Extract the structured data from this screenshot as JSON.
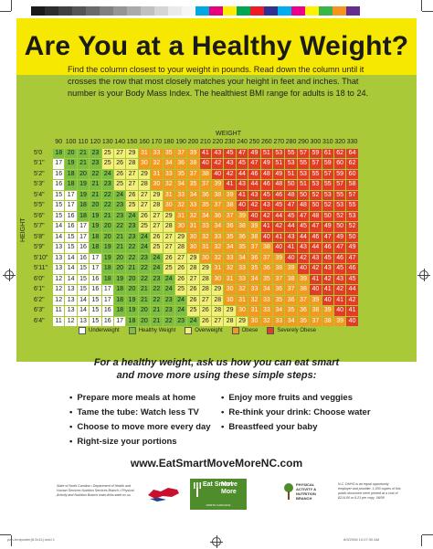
{
  "colors": {
    "banner": "#f6e800",
    "panel": "#a9c938",
    "underweight": "#ffffff",
    "healthy": "#7bbf43",
    "overweight": "#f4ee7a",
    "obese": "#f29a1e",
    "severely_obese": "#e23c25"
  },
  "print_colorbar": [
    "#1a1a1a",
    "#2d2d2d",
    "#404040",
    "#555555",
    "#6a6a6a",
    "#808080",
    "#959595",
    "#aaaaaa",
    "#c0c0c0",
    "#d5d5d5",
    "#eaeaea",
    "#f6f6f6",
    "#00a7e1",
    "#e6007e",
    "#ffed00",
    "#00a651",
    "#ed1c24",
    "#2e3192",
    "#00aeef",
    "#ec008c",
    "#fff200",
    "#39b54a",
    "#f7941d",
    "#662d91"
  ],
  "title": "Are You at a Healthy Weight?",
  "intro": "Find the column closest to your weight in pounds. Read down the column until it crosses the row that most closely matches your height in feet and inches. That number is your Body Mass Index. The healthiest BMI range for adults is 18 to 24.",
  "chart": {
    "weight_label": "WEIGHT",
    "height_label": "HEIGHT",
    "weights": [
      "90",
      "100",
      "110",
      "120",
      "130",
      "140",
      "150",
      "160",
      "170",
      "180",
      "190",
      "200",
      "210",
      "220",
      "230",
      "240",
      "250",
      "260",
      "270",
      "280",
      "290",
      "300",
      "310",
      "320",
      "330"
    ],
    "rows": [
      {
        "height": "5'0",
        "values": [
          18,
          20,
          21,
          23,
          25,
          27,
          29,
          31,
          33,
          35,
          37,
          39,
          41,
          43,
          45,
          47,
          49,
          51,
          53,
          55,
          57,
          59,
          61,
          62,
          64
        ]
      },
      {
        "height": "5'1\"",
        "values": [
          17,
          19,
          21,
          23,
          25,
          26,
          28,
          30,
          32,
          34,
          36,
          38,
          40,
          42,
          43,
          45,
          47,
          49,
          51,
          53,
          55,
          57,
          59,
          60,
          62
        ]
      },
      {
        "height": "5'2\"",
        "values": [
          16,
          18,
          20,
          22,
          24,
          26,
          27,
          29,
          31,
          33,
          35,
          37,
          38,
          40,
          42,
          44,
          46,
          48,
          49,
          51,
          53,
          55,
          57,
          59,
          60
        ]
      },
      {
        "height": "5'3\"",
        "values": [
          16,
          18,
          19,
          21,
          23,
          25,
          27,
          28,
          30,
          32,
          34,
          35,
          37,
          39,
          41,
          43,
          44,
          46,
          48,
          50,
          51,
          53,
          55,
          57,
          58
        ]
      },
      {
        "height": "5'4\"",
        "values": [
          15,
          17,
          19,
          21,
          22,
          24,
          26,
          27,
          29,
          31,
          33,
          34,
          36,
          38,
          39,
          41,
          43,
          45,
          46,
          48,
          50,
          52,
          53,
          55,
          57
        ]
      },
      {
        "height": "5'5\"",
        "values": [
          15,
          17,
          18,
          20,
          22,
          23,
          25,
          27,
          28,
          30,
          32,
          33,
          35,
          37,
          38,
          40,
          42,
          43,
          45,
          47,
          48,
          50,
          52,
          53,
          55
        ]
      },
      {
        "height": "5'6\"",
        "values": [
          15,
          16,
          18,
          19,
          21,
          23,
          24,
          26,
          27,
          29,
          31,
          32,
          34,
          36,
          37,
          39,
          40,
          42,
          44,
          45,
          47,
          48,
          50,
          52,
          53
        ]
      },
      {
        "height": "5'7\"",
        "values": [
          14,
          16,
          17,
          19,
          20,
          22,
          23,
          25,
          27,
          28,
          30,
          31,
          33,
          34,
          36,
          38,
          39,
          41,
          42,
          44,
          45,
          47,
          49,
          50,
          52
        ]
      },
      {
        "height": "5'8\"",
        "values": [
          14,
          15,
          17,
          18,
          20,
          21,
          23,
          24,
          26,
          27,
          29,
          30,
          32,
          33,
          35,
          36,
          38,
          40,
          41,
          43,
          44,
          46,
          47,
          49,
          50
        ]
      },
      {
        "height": "5'9\"",
        "values": [
          13,
          15,
          16,
          18,
          19,
          21,
          22,
          24,
          25,
          27,
          28,
          30,
          31,
          32,
          34,
          35,
          37,
          38,
          40,
          41,
          43,
          44,
          46,
          47,
          49
        ]
      },
      {
        "height": "5'10\"",
        "values": [
          13,
          14,
          16,
          17,
          19,
          20,
          22,
          23,
          24,
          26,
          27,
          29,
          30,
          32,
          33,
          34,
          36,
          37,
          39,
          40,
          42,
          43,
          45,
          46,
          47
        ]
      },
      {
        "height": "5'11\"",
        "values": [
          13,
          14,
          15,
          17,
          18,
          20,
          21,
          22,
          24,
          25,
          26,
          28,
          29,
          31,
          32,
          33,
          35,
          36,
          38,
          39,
          40,
          42,
          43,
          45,
          46
        ]
      },
      {
        "height": "6'0\"",
        "values": [
          12,
          14,
          15,
          16,
          18,
          19,
          20,
          22,
          23,
          24,
          26,
          27,
          28,
          30,
          31,
          33,
          34,
          35,
          37,
          38,
          39,
          41,
          42,
          43,
          45
        ]
      },
      {
        "height": "6'1\"",
        "values": [
          12,
          13,
          15,
          16,
          17,
          18,
          20,
          21,
          22,
          24,
          25,
          26,
          28,
          29,
          30,
          32,
          33,
          34,
          36,
          37,
          38,
          40,
          41,
          42,
          44
        ]
      },
      {
        "height": "6'2\"",
        "values": [
          12,
          13,
          14,
          15,
          17,
          18,
          19,
          21,
          22,
          23,
          24,
          26,
          27,
          28,
          30,
          31,
          32,
          33,
          35,
          36,
          37,
          39,
          40,
          41,
          42
        ]
      },
      {
        "height": "6'3\"",
        "values": [
          11,
          13,
          14,
          15,
          16,
          18,
          19,
          20,
          21,
          23,
          24,
          25,
          26,
          28,
          29,
          30,
          31,
          33,
          34,
          35,
          36,
          38,
          39,
          40,
          41
        ]
      },
      {
        "height": "6'4\"",
        "values": [
          11,
          12,
          13,
          15,
          16,
          17,
          18,
          20,
          21,
          22,
          23,
          24,
          26,
          27,
          28,
          29,
          30,
          32,
          33,
          34,
          35,
          37,
          38,
          39,
          40
        ]
      }
    ]
  },
  "legend": [
    {
      "label": "Underweight",
      "color_key": "underweight"
    },
    {
      "label": "Healthy Weight",
      "color_key": "healthy"
    },
    {
      "label": "Overweight",
      "color_key": "overweight"
    },
    {
      "label": "Obese",
      "color_key": "obese"
    },
    {
      "label": "Severely Obese",
      "color_key": "severely_obese"
    }
  ],
  "tagline_1": "For a healthy weight, ask us how you can eat smart",
  "tagline_2": "and move more using these simple steps:",
  "tips_left": [
    "Prepare more meals at home",
    "Tame the tube: Watch less TV",
    "Choose to move more every day",
    "Right-size your portions"
  ],
  "tips_right": [
    "Enjoy more fruits and veggies",
    "Re-think your drink: Choose water",
    "Breastfeed your baby"
  ],
  "url": "www.EatSmartMoveMoreNC.com",
  "footer_left": "State of North Carolina • Department of Health and Human Services Nutrition Services Branch • Physical Activity and Nutrition Branch www.dhhs.state.nc.us",
  "footer_right": "N.C. DHHS is an equal opportunity employer and provider. 1,000 copies of this public document were printed at a cost of $214.00 or $.21 per copy. 06/08",
  "logos": {
    "esmm_eat": "Eat Smart",
    "esmm_move": "Move More",
    "esmm_state": "NORTH CAROLINA",
    "branch": "PHYSICAL ACTIVITY & NUTRITION BRANCH"
  },
  "slug_left": "pan-bmiposter(8.5x11).indd 1",
  "slug_right": "6/9/2008 10:07:30 AM"
}
